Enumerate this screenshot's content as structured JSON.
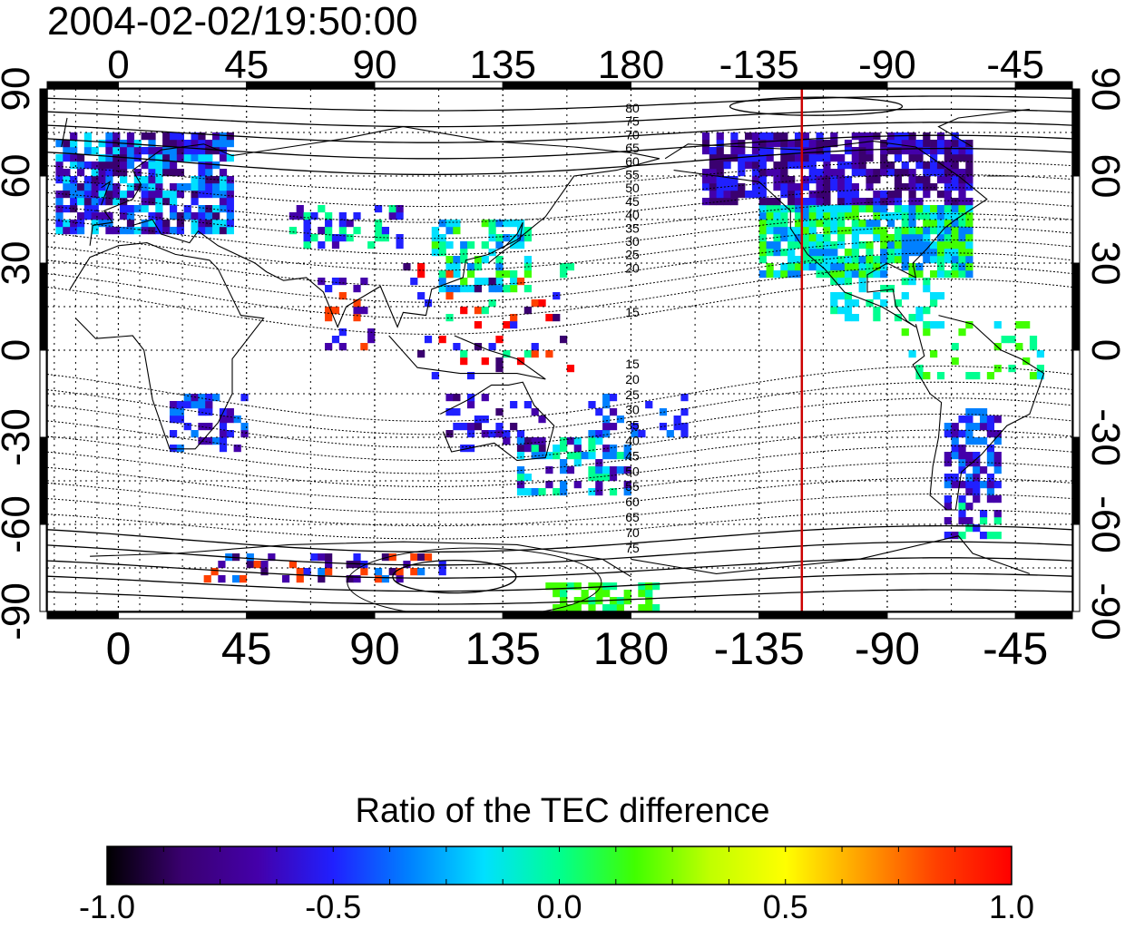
{
  "title": "2004-02-02/19:50:00",
  "map": {
    "lon_ticks": [
      "0",
      "45",
      "90",
      "135",
      "180",
      "-135",
      "-90",
      "-45"
    ],
    "lat_ticks": [
      "90",
      "60",
      "30",
      "0",
      "-30",
      "-60",
      "-90"
    ],
    "meridian_longitude": -120,
    "meridian_color": "#cc0000",
    "contour_labels_north": [
      "80",
      "75",
      "70",
      "65",
      "60",
      "55",
      "50",
      "45",
      "40",
      "35",
      "30",
      "25",
      "20",
      "15"
    ],
    "contour_labels_south": [
      "15",
      "20",
      "25",
      "30",
      "35",
      "40",
      "45",
      "50",
      "55",
      "60",
      "65",
      "70",
      "75"
    ]
  },
  "colorbar": {
    "title": "Ratio of the TEC difference",
    "ticks": [
      "-1.0",
      "-0.5",
      "0.0",
      "0.5",
      "1.0"
    ],
    "range": [
      -1.0,
      1.0
    ],
    "colors": [
      "#000000",
      "#3a0070",
      "#4400aa",
      "#2020ff",
      "#0080ff",
      "#00e0ff",
      "#00ff90",
      "#40ff00",
      "#c0ff00",
      "#ffff00",
      "#ffa000",
      "#ff4000",
      "#ff0000"
    ]
  }
}
